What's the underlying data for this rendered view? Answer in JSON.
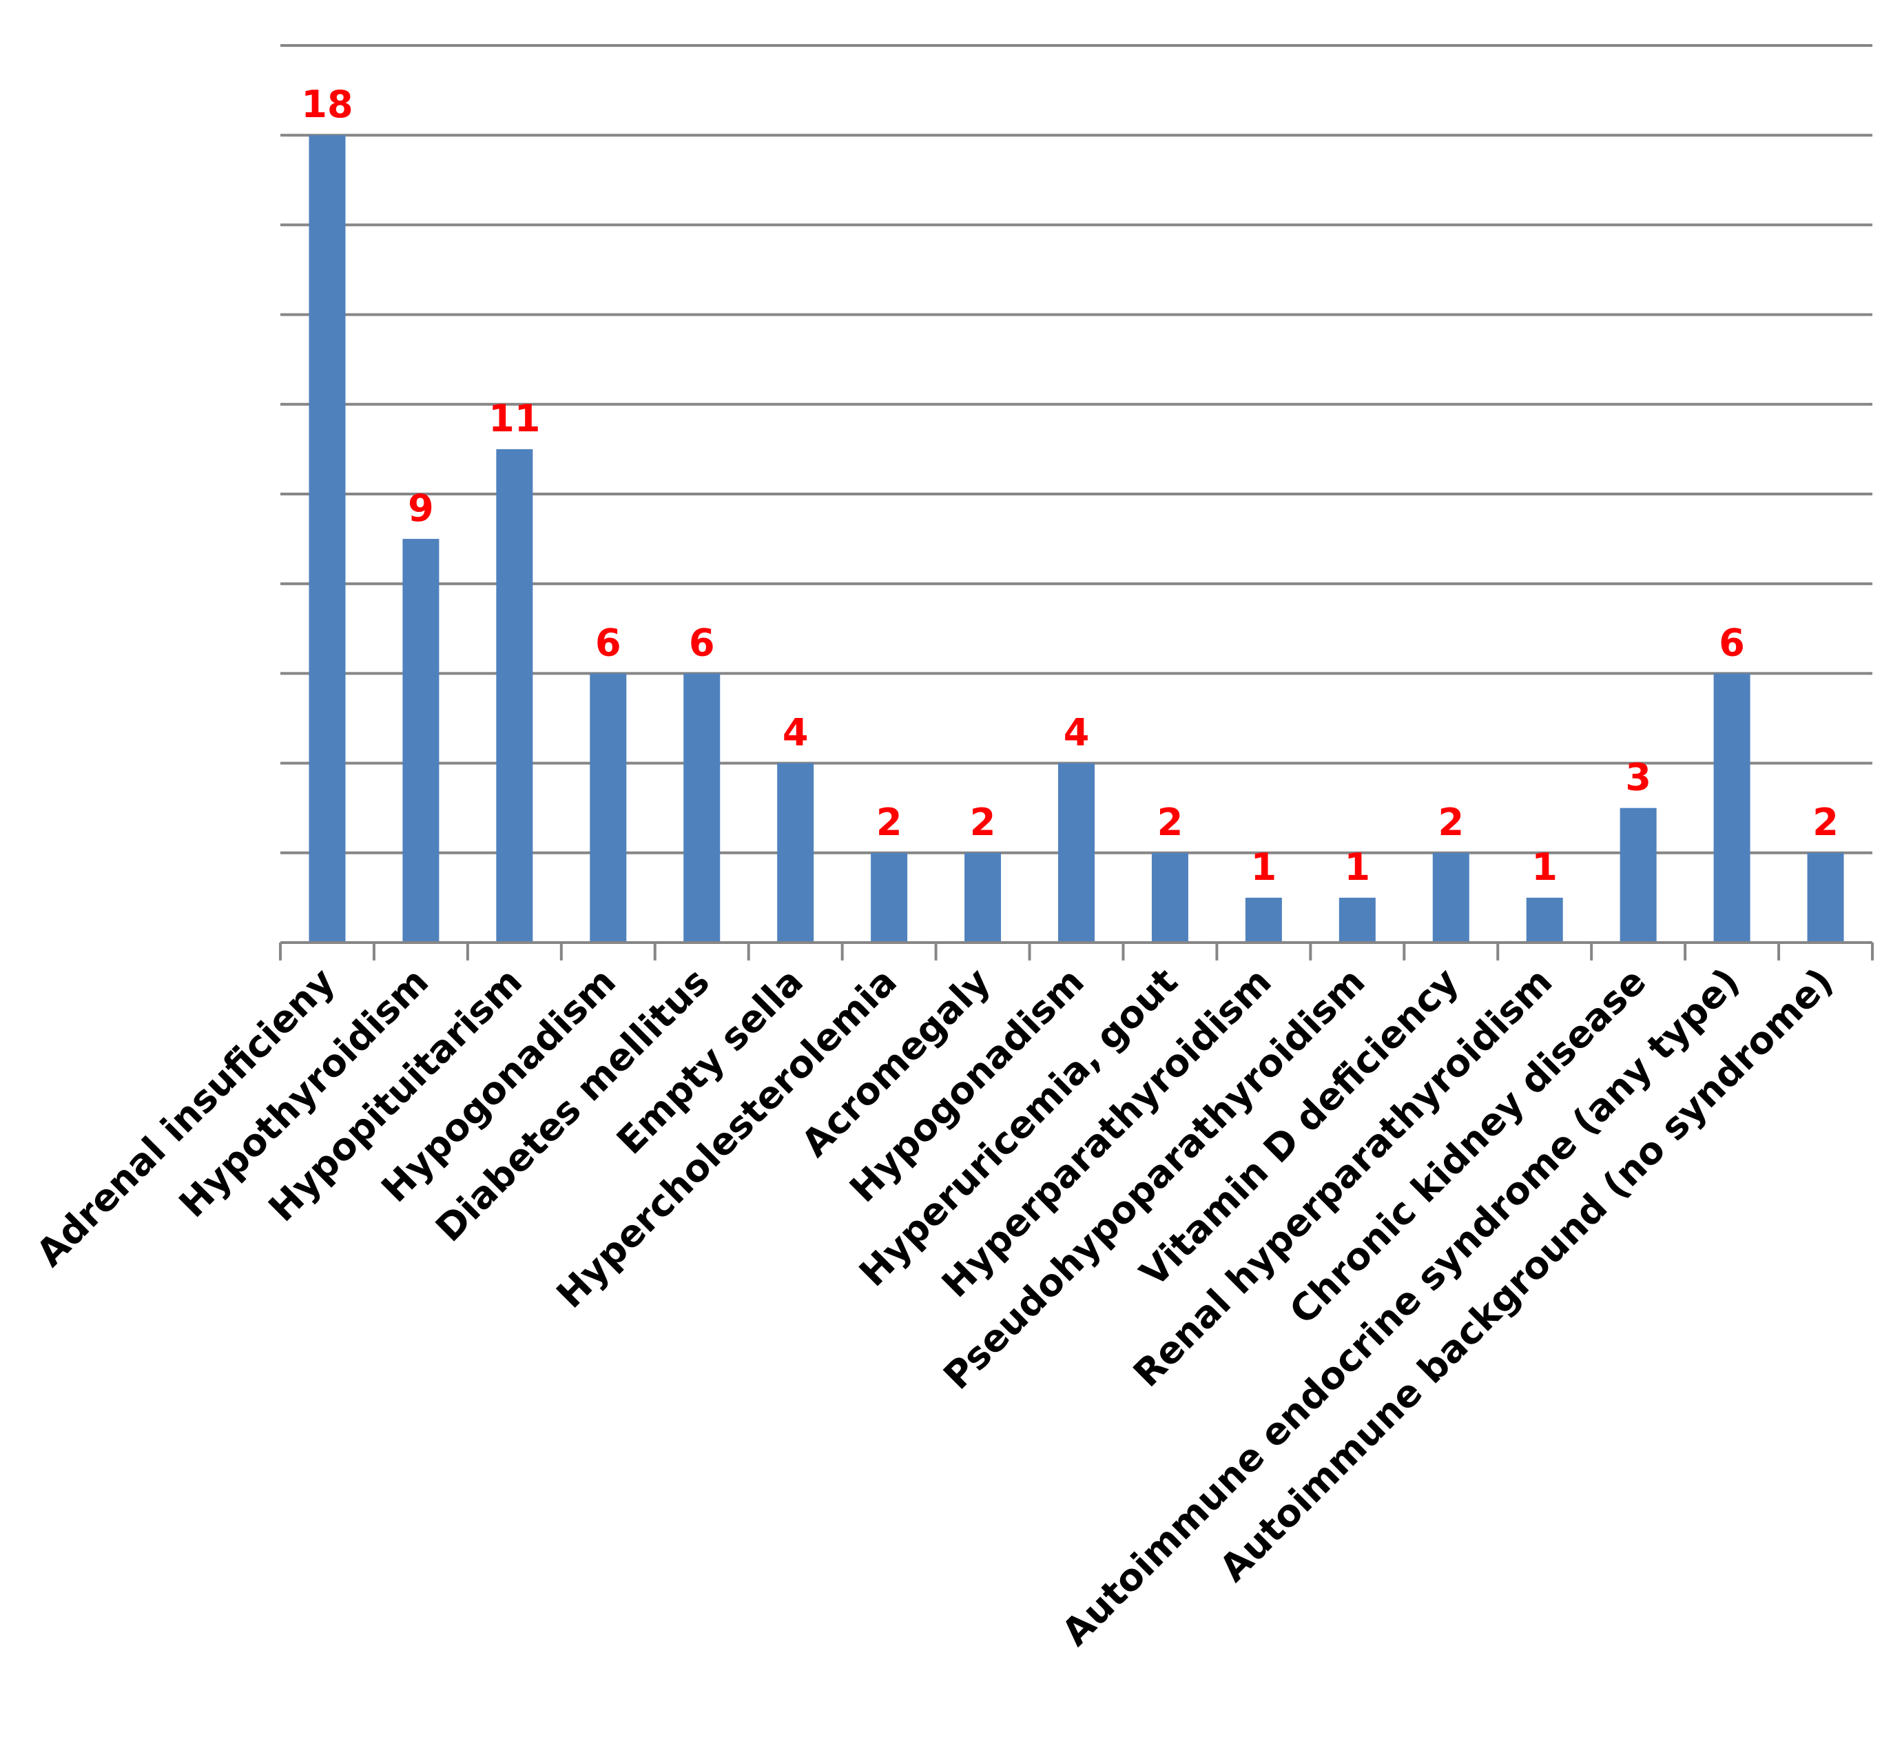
{
  "chart_data": {
    "type": "bar",
    "categories": [
      "Adrenal insuficieny",
      "Hypothyroidism",
      "Hypopituitarism",
      "Hypogonadism",
      "Diabetes mellitus",
      "Empty sella",
      "Hypercholesterolemia",
      "Acromegaly",
      "Hypogonadism",
      "Hyperuricemia, gout",
      "Hyperparathyroidism",
      "Pseudohypoparathyroidism",
      "Vitamin D deficiency",
      "Renal hyperparathyroidism",
      "Chronic kidney disease",
      "Autoimmune endocrine syndrome (any type)",
      "Autoimmune background (no syndrome)"
    ],
    "values": [
      18,
      9,
      11,
      6,
      6,
      4,
      2,
      2,
      4,
      2,
      1,
      1,
      2,
      1,
      3,
      6,
      2
    ],
    "ylim": [
      0,
      20
    ],
    "grid_step": 2,
    "grid": true,
    "y_tick_labels_shown": false,
    "legend": "none",
    "colors": {
      "bar": "#4f81bd",
      "data_label": "#ff0000",
      "grid": "#868686",
      "tick_label": "#000000"
    }
  }
}
